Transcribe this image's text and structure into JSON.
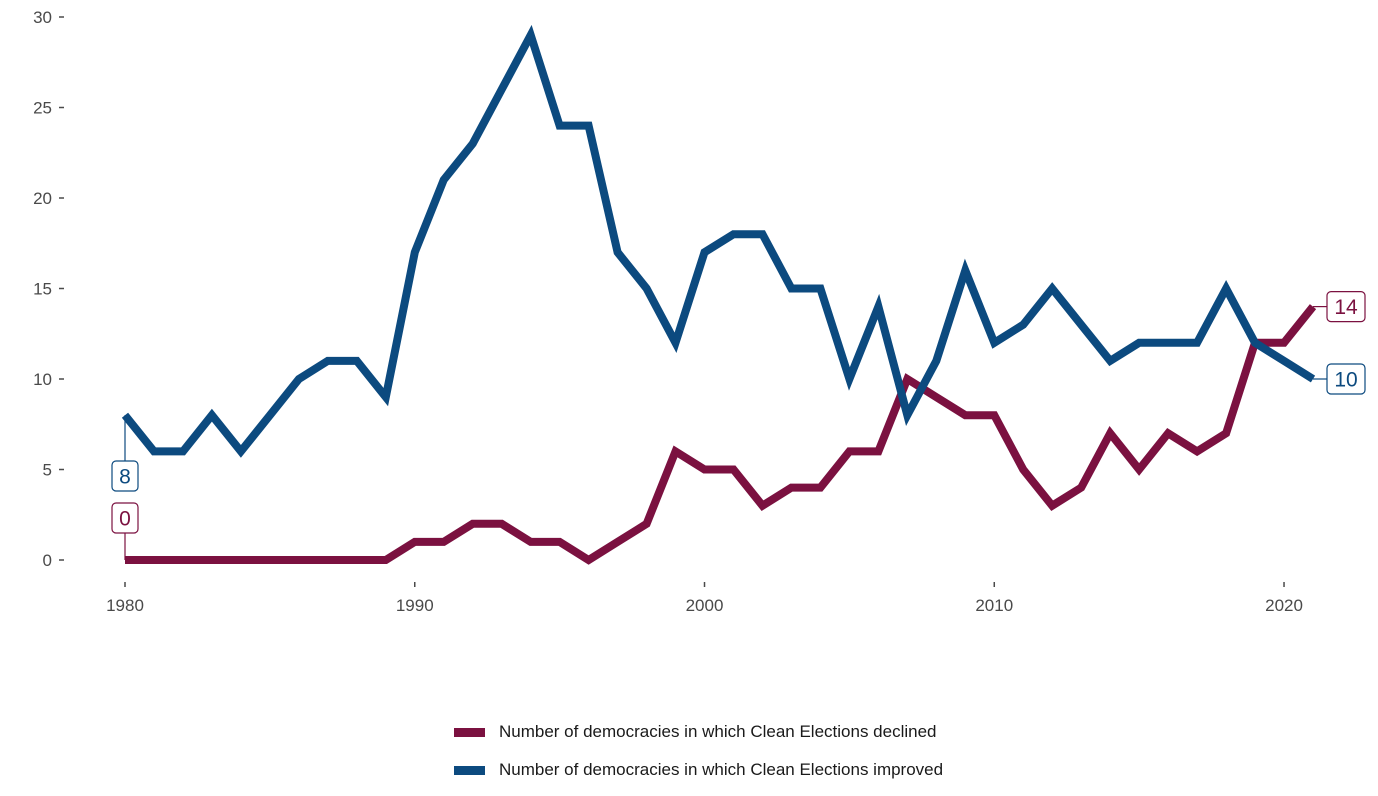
{
  "chart_data": {
    "type": "line",
    "title": "",
    "xlabel": "",
    "ylabel": "",
    "xlim": [
      1980,
      2021
    ],
    "ylim": [
      0,
      30
    ],
    "x_ticks": [
      1980,
      1990,
      2000,
      2010,
      2020
    ],
    "y_ticks": [
      0,
      5,
      10,
      15,
      20,
      25,
      30
    ],
    "grid": false,
    "legend_position": "bottom",
    "x": [
      1980,
      1981,
      1982,
      1983,
      1984,
      1985,
      1986,
      1987,
      1988,
      1989,
      1990,
      1991,
      1992,
      1993,
      1994,
      1995,
      1996,
      1997,
      1998,
      1999,
      2000,
      2001,
      2002,
      2003,
      2004,
      2005,
      2006,
      2007,
      2008,
      2009,
      2010,
      2011,
      2012,
      2013,
      2014,
      2015,
      2016,
      2017,
      2018,
      2019,
      2020,
      2021
    ],
    "series": [
      {
        "name": "Number of democracies in which Clean Elections declined",
        "color": "#7b1140",
        "values": [
          0,
          0,
          0,
          0,
          0,
          0,
          0,
          0,
          0,
          0,
          1,
          1,
          2,
          2,
          1,
          1,
          0,
          1,
          2,
          6,
          5,
          5,
          3,
          4,
          4,
          6,
          6,
          10,
          9,
          8,
          8,
          5,
          3,
          4,
          7,
          5,
          7,
          6,
          7,
          12,
          12,
          14
        ],
        "start_label": "0",
        "end_label": "14"
      },
      {
        "name": "Number of democracies in which Clean Elections improved",
        "color": "#0c4a7f",
        "values": [
          8,
          6,
          6,
          8,
          6,
          8,
          10,
          11,
          11,
          9,
          17,
          21,
          23,
          26,
          29,
          24,
          24,
          17,
          15,
          12,
          17,
          18,
          18,
          15,
          15,
          10,
          14,
          8,
          11,
          16,
          12,
          13,
          15,
          13,
          11,
          12,
          12,
          12,
          15,
          12,
          11,
          10
        ],
        "start_label": "8",
        "end_label": "10"
      }
    ]
  }
}
